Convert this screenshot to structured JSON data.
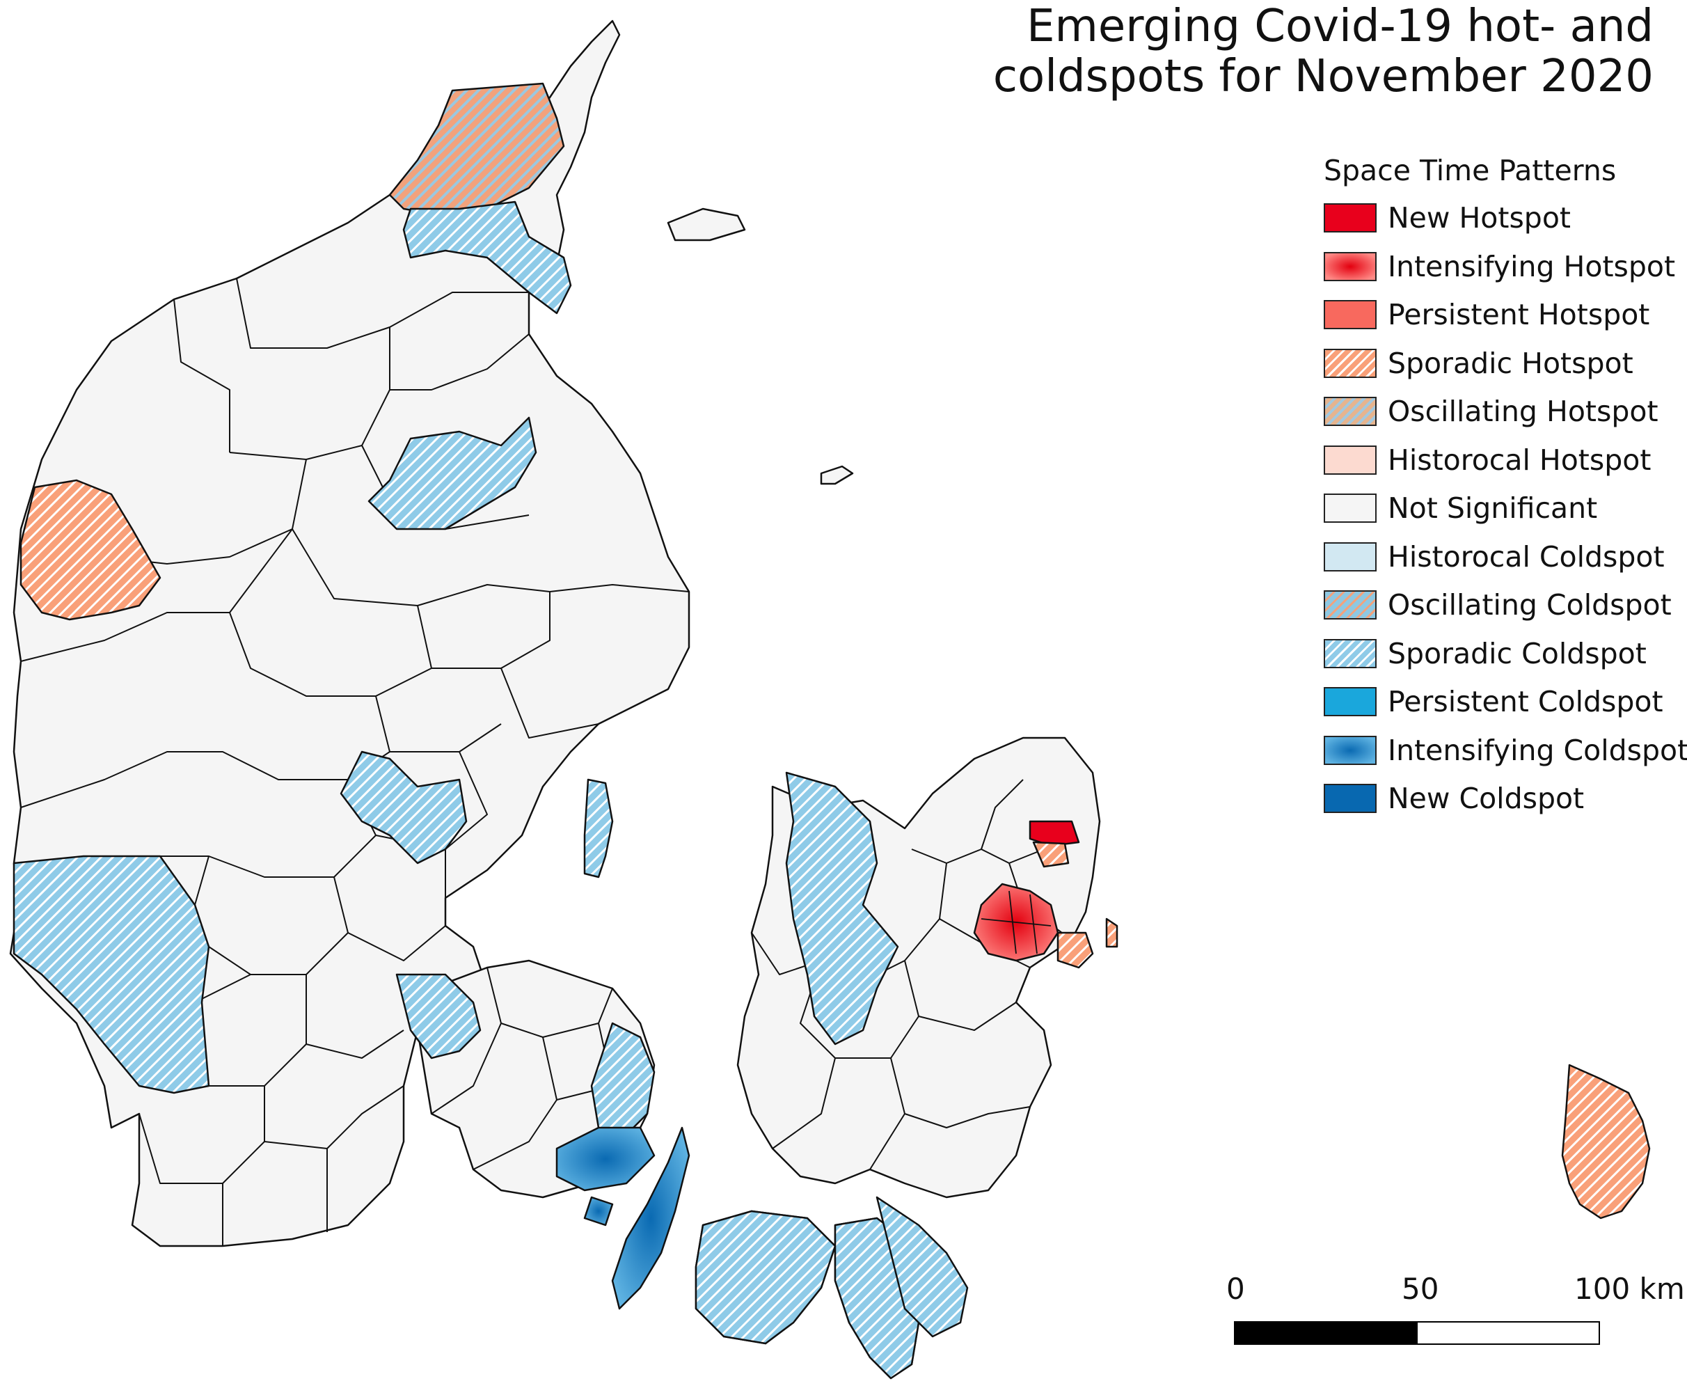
{
  "title_line1": "Emerging Covid-19 hot- and",
  "title_line2": "coldspots for November 2020",
  "legend": {
    "title": "Space Time Patterns",
    "items": [
      {
        "label": "New Hotspot",
        "key": "newHot",
        "color": "#e8001c"
      },
      {
        "label": "Intensifying Hotspot",
        "key": "intHot",
        "color": "#f03b3b"
      },
      {
        "label": "Persistent Hotspot",
        "key": "persHot",
        "color": "#f8695e"
      },
      {
        "label": "Sporadic Hotspot",
        "key": "spoHot",
        "color": "#f9a079"
      },
      {
        "label": "Oscillating Hotspot",
        "key": "oscHot",
        "color": "#e5b48f"
      },
      {
        "label": "Historocal Hotspot",
        "key": "histHot",
        "color": "#fcdad0"
      },
      {
        "label": "Not Significant",
        "key": "ns",
        "color": "#f5f5f5"
      },
      {
        "label": "Historocal Coldspot",
        "key": "histCold",
        "color": "#d2e8f2"
      },
      {
        "label": "Oscillating Coldspot",
        "key": "oscCold",
        "color": "#8ec8e2"
      },
      {
        "label": "Sporadic Coldspot",
        "key": "spoCold",
        "color": "#8fcbe8"
      },
      {
        "label": "Persistent Coldspot",
        "key": "persCold",
        "color": "#1aa7dc"
      },
      {
        "label": "Intensifying Coldspot",
        "key": "intCold",
        "color": "#1b86c4"
      },
      {
        "label": "New Coldspot",
        "key": "newCold",
        "color": "#0868b0"
      }
    ]
  },
  "scale_bar": {
    "labels": [
      "0",
      "50",
      "100 km"
    ]
  }
}
